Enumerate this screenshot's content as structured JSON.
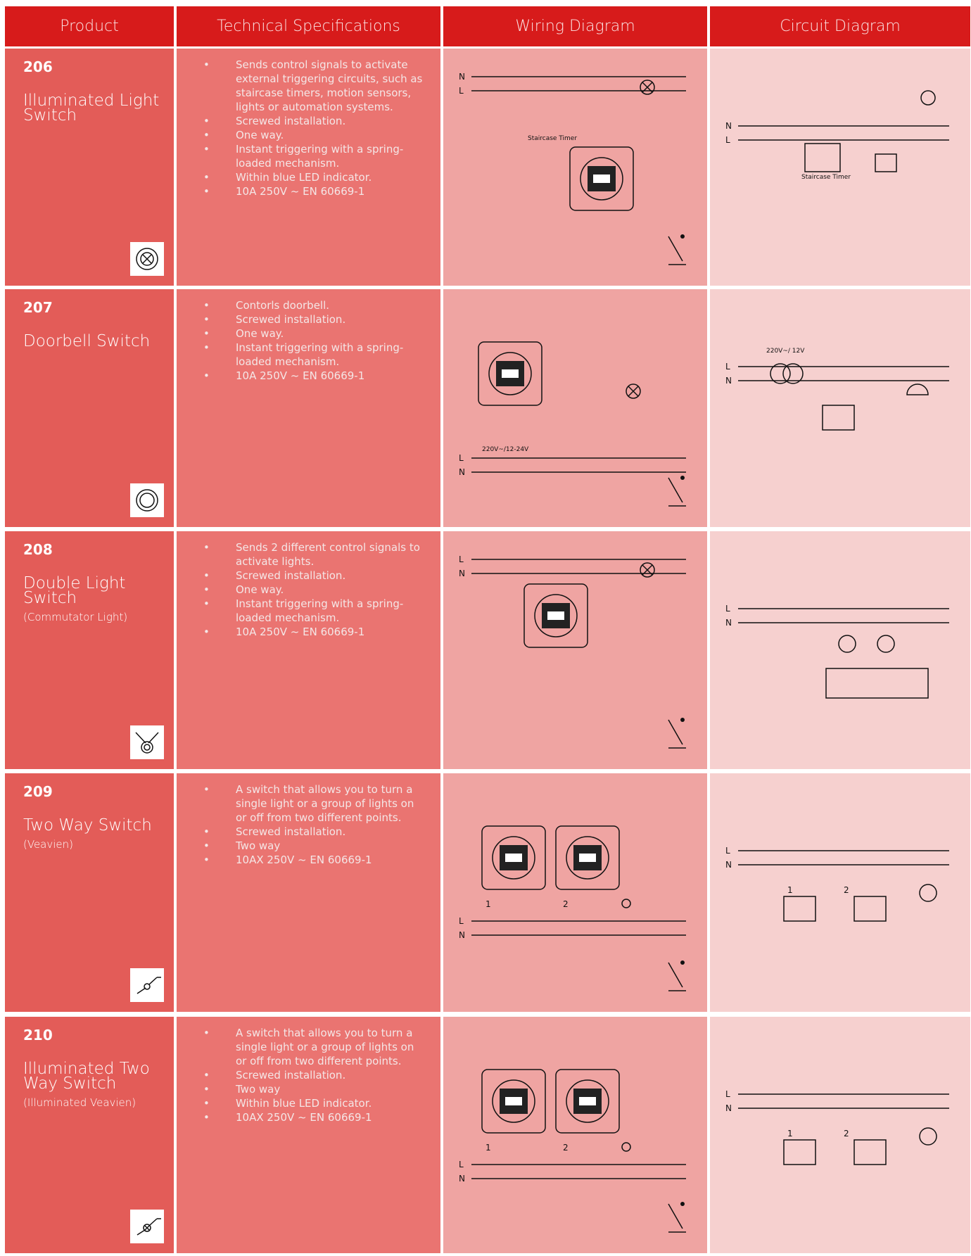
{
  "header": {
    "columns": [
      "Product",
      "Technical Specifications",
      "Wiring Diagram",
      "Circuit Diagram"
    ]
  },
  "rows": [
    {
      "code": "206",
      "name": "Illuminated Light Switch",
      "specs": [
        "Sends control signals to activate external triggering circuits, such as staircase timers, motion sensors, lights or automation systems.",
        "Screwed installation.",
        "One way.",
        "Instant triggering with a spring-loaded mechanism.",
        "Within blue LED indicator.",
        "10A 250V ~  EN 60669-1"
      ],
      "wiring_labels": [
        "N",
        "L",
        "Staircase Timer"
      ],
      "circuit_labels": [
        "N",
        "L",
        "Staircase Timer"
      ]
    },
    {
      "code": "207",
      "name": "Doorbell Switch",
      "specs": [
        "Contorls doorbell.",
        "Screwed installation.",
        "One way.",
        "Instant triggering with a spring-loaded mechanism.",
        "10A 250V ~  EN 60669-1"
      ],
      "wiring_labels": [
        "L",
        "N",
        "220V~/12-24V"
      ],
      "circuit_labels": [
        "L",
        "N",
        "220V~/ 12V"
      ]
    },
    {
      "code": "208",
      "name": "Double Light Switch",
      "subtitle": "(Commutator Light)",
      "specs": [
        "Sends 2 different control signals to activate lights.",
        "Screwed installation.",
        "One way.",
        "Instant triggering with a spring-loaded mechanism.",
        "10A 250V ~  EN 60669-1"
      ],
      "wiring_labels": [
        "L",
        "N"
      ],
      "circuit_labels": [
        "L",
        "N"
      ]
    },
    {
      "code": "209",
      "name": "Two Way Switch",
      "subtitle": "(Veavien)",
      "specs": [
        "A switch that allows you to turn a single light or a group of lights on or off from two different points.",
        "Screwed installation.",
        "Two way",
        "10AX 250V ~  EN 60669-1"
      ],
      "wiring_labels": [
        "L",
        "N",
        "1",
        "2"
      ],
      "circuit_labels": [
        "L",
        "N",
        "1",
        "2"
      ]
    },
    {
      "code": "210",
      "name": "Illuminated Two Way Switch",
      "subtitle": "(Illuminated Veavien)",
      "specs": [
        "A switch that allows you to turn a single light or a group of lights on or off from two different points.",
        "Screwed installation.",
        "Two way",
        "Within blue LED indicator.",
        "10AX 250V ~  EN 60669-1"
      ],
      "wiring_labels": [
        "L",
        "N",
        "1",
        "2"
      ],
      "circuit_labels": [
        "L",
        "N",
        "1",
        "2"
      ]
    }
  ]
}
